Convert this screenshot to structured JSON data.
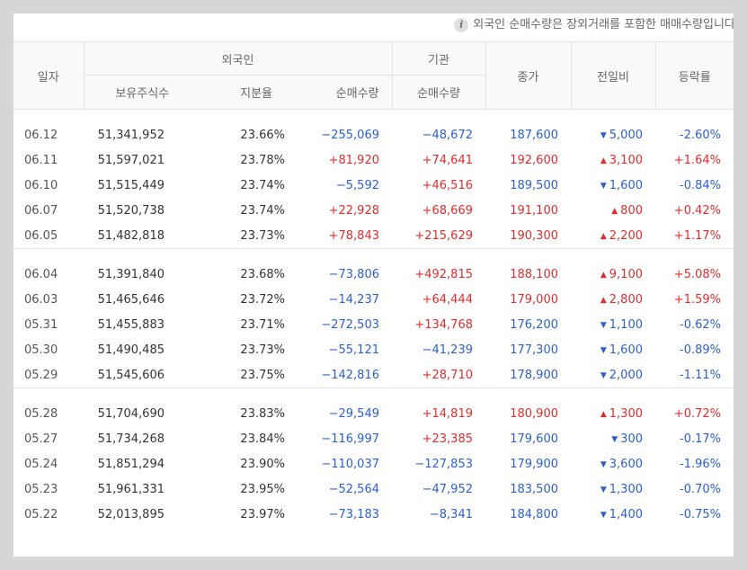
{
  "notice": "외국인 순매수량은 장외거래를 포함한 매매수량입니다.",
  "header": {
    "date": "일자",
    "foreign": "외국인",
    "institution": "기관",
    "close": "종가",
    "change": "전일비",
    "change_rate": "등락률",
    "holdings": "보유주식수",
    "ratio": "지분율",
    "foreign_net": "순매수량",
    "inst_net": "순매수량"
  },
  "colors": {
    "up": "#e52c2c",
    "down": "#2c5fcf"
  },
  "groups": [
    [
      {
        "date": "06.12",
        "holdings": "51,341,952",
        "ratio": "23.66%",
        "foreign_net": "−255,069",
        "inst_net": "−48,672",
        "close": "187,600",
        "change": "5,000",
        "dir": "down",
        "rate": "-2.60%"
      },
      {
        "date": "06.11",
        "holdings": "51,597,021",
        "ratio": "23.78%",
        "foreign_net": "+81,920",
        "inst_net": "+74,641",
        "close": "192,600",
        "change": "3,100",
        "dir": "up",
        "rate": "+1.64%"
      },
      {
        "date": "06.10",
        "holdings": "51,515,449",
        "ratio": "23.74%",
        "foreign_net": "−5,592",
        "inst_net": "+46,516",
        "close": "189,500",
        "change": "1,600",
        "dir": "down",
        "rate": "-0.84%"
      },
      {
        "date": "06.07",
        "holdings": "51,520,738",
        "ratio": "23.74%",
        "foreign_net": "+22,928",
        "inst_net": "+68,669",
        "close": "191,100",
        "change": "800",
        "dir": "up",
        "rate": "+0.42%"
      },
      {
        "date": "06.05",
        "holdings": "51,482,818",
        "ratio": "23.73%",
        "foreign_net": "+78,843",
        "inst_net": "+215,629",
        "close": "190,300",
        "change": "2,200",
        "dir": "up",
        "rate": "+1.17%"
      }
    ],
    [
      {
        "date": "06.04",
        "holdings": "51,391,840",
        "ratio": "23.68%",
        "foreign_net": "−73,806",
        "inst_net": "+492,815",
        "close": "188,100",
        "change": "9,100",
        "dir": "up",
        "rate": "+5.08%"
      },
      {
        "date": "06.03",
        "holdings": "51,465,646",
        "ratio": "23.72%",
        "foreign_net": "−14,237",
        "inst_net": "+64,444",
        "close": "179,000",
        "change": "2,800",
        "dir": "up",
        "rate": "+1.59%"
      },
      {
        "date": "05.31",
        "holdings": "51,455,883",
        "ratio": "23.71%",
        "foreign_net": "−272,503",
        "inst_net": "+134,768",
        "close": "176,200",
        "change": "1,100",
        "dir": "down",
        "rate": "-0.62%"
      },
      {
        "date": "05.30",
        "holdings": "51,490,485",
        "ratio": "23.73%",
        "foreign_net": "−55,121",
        "inst_net": "−41,239",
        "close": "177,300",
        "change": "1,600",
        "dir": "down",
        "rate": "-0.89%"
      },
      {
        "date": "05.29",
        "holdings": "51,545,606",
        "ratio": "23.75%",
        "foreign_net": "−142,816",
        "inst_net": "+28,710",
        "close": "178,900",
        "change": "2,000",
        "dir": "down",
        "rate": "-1.11%"
      }
    ],
    [
      {
        "date": "05.28",
        "holdings": "51,704,690",
        "ratio": "23.83%",
        "foreign_net": "−29,549",
        "inst_net": "+14,819",
        "close": "180,900",
        "change": "1,300",
        "dir": "up",
        "rate": "+0.72%"
      },
      {
        "date": "05.27",
        "holdings": "51,734,268",
        "ratio": "23.84%",
        "foreign_net": "−116,997",
        "inst_net": "+23,385",
        "close": "179,600",
        "change": "300",
        "dir": "down",
        "rate": "-0.17%"
      },
      {
        "date": "05.24",
        "holdings": "51,851,294",
        "ratio": "23.90%",
        "foreign_net": "−110,037",
        "inst_net": "−127,853",
        "close": "179,900",
        "change": "3,600",
        "dir": "down",
        "rate": "-1.96%"
      },
      {
        "date": "05.23",
        "holdings": "51,961,331",
        "ratio": "23.95%",
        "foreign_net": "−52,564",
        "inst_net": "−47,952",
        "close": "183,500",
        "change": "1,300",
        "dir": "down",
        "rate": "-0.70%"
      },
      {
        "date": "05.22",
        "holdings": "52,013,895",
        "ratio": "23.97%",
        "foreign_net": "−73,183",
        "inst_net": "−8,341",
        "close": "184,800",
        "change": "1,400",
        "dir": "down",
        "rate": "-0.75%"
      }
    ]
  ]
}
